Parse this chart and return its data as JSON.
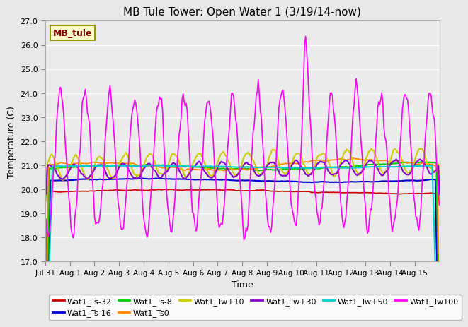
{
  "title": "MB Tule Tower: Open Water 1 (3/19/14-now)",
  "xlabel": "Time",
  "ylabel": "Temperature (C)",
  "ylim": [
    17.0,
    27.0
  ],
  "yticks": [
    17.0,
    18.0,
    19.0,
    20.0,
    21.0,
    22.0,
    23.0,
    24.0,
    25.0,
    26.0,
    27.0
  ],
  "xtick_labels": [
    "Jul 31",
    "Aug 1",
    "Aug 2",
    "Aug 3",
    "Aug 4",
    "Aug 5",
    "Aug 6",
    "Aug 7",
    "Aug 8",
    "Aug 9",
    "Aug 10",
    "Aug 11",
    "Aug 12",
    "Aug 13",
    "Aug 14",
    "Aug 15"
  ],
  "bg_color": "#e8e8e8",
  "plot_bg": "#ebebeb",
  "legend_box": {
    "label": "MB_tule",
    "facecolor": "#ffffcc",
    "edgecolor": "#999900",
    "textcolor": "#800000"
  },
  "series": [
    {
      "label": "Wat1_Ts-32",
      "color": "#cc0000",
      "lw": 1.2
    },
    {
      "label": "Wat1_Ts-16",
      "color": "#0000cc",
      "lw": 1.5
    },
    {
      "label": "Wat1_Ts-8",
      "color": "#00cc00",
      "lw": 1.5
    },
    {
      "label": "Wat1_Ts0",
      "color": "#ff8800",
      "lw": 1.2
    },
    {
      "label": "Wat1_Tw+10",
      "color": "#cccc00",
      "lw": 1.5
    },
    {
      "label": "Wat1_Tw+30",
      "color": "#8800cc",
      "lw": 1.5
    },
    {
      "label": "Wat1_Tw+50",
      "color": "#00cccc",
      "lw": 1.5
    },
    {
      "label": "Wat1_Tw100",
      "color": "#ff00ff",
      "lw": 1.2
    }
  ]
}
